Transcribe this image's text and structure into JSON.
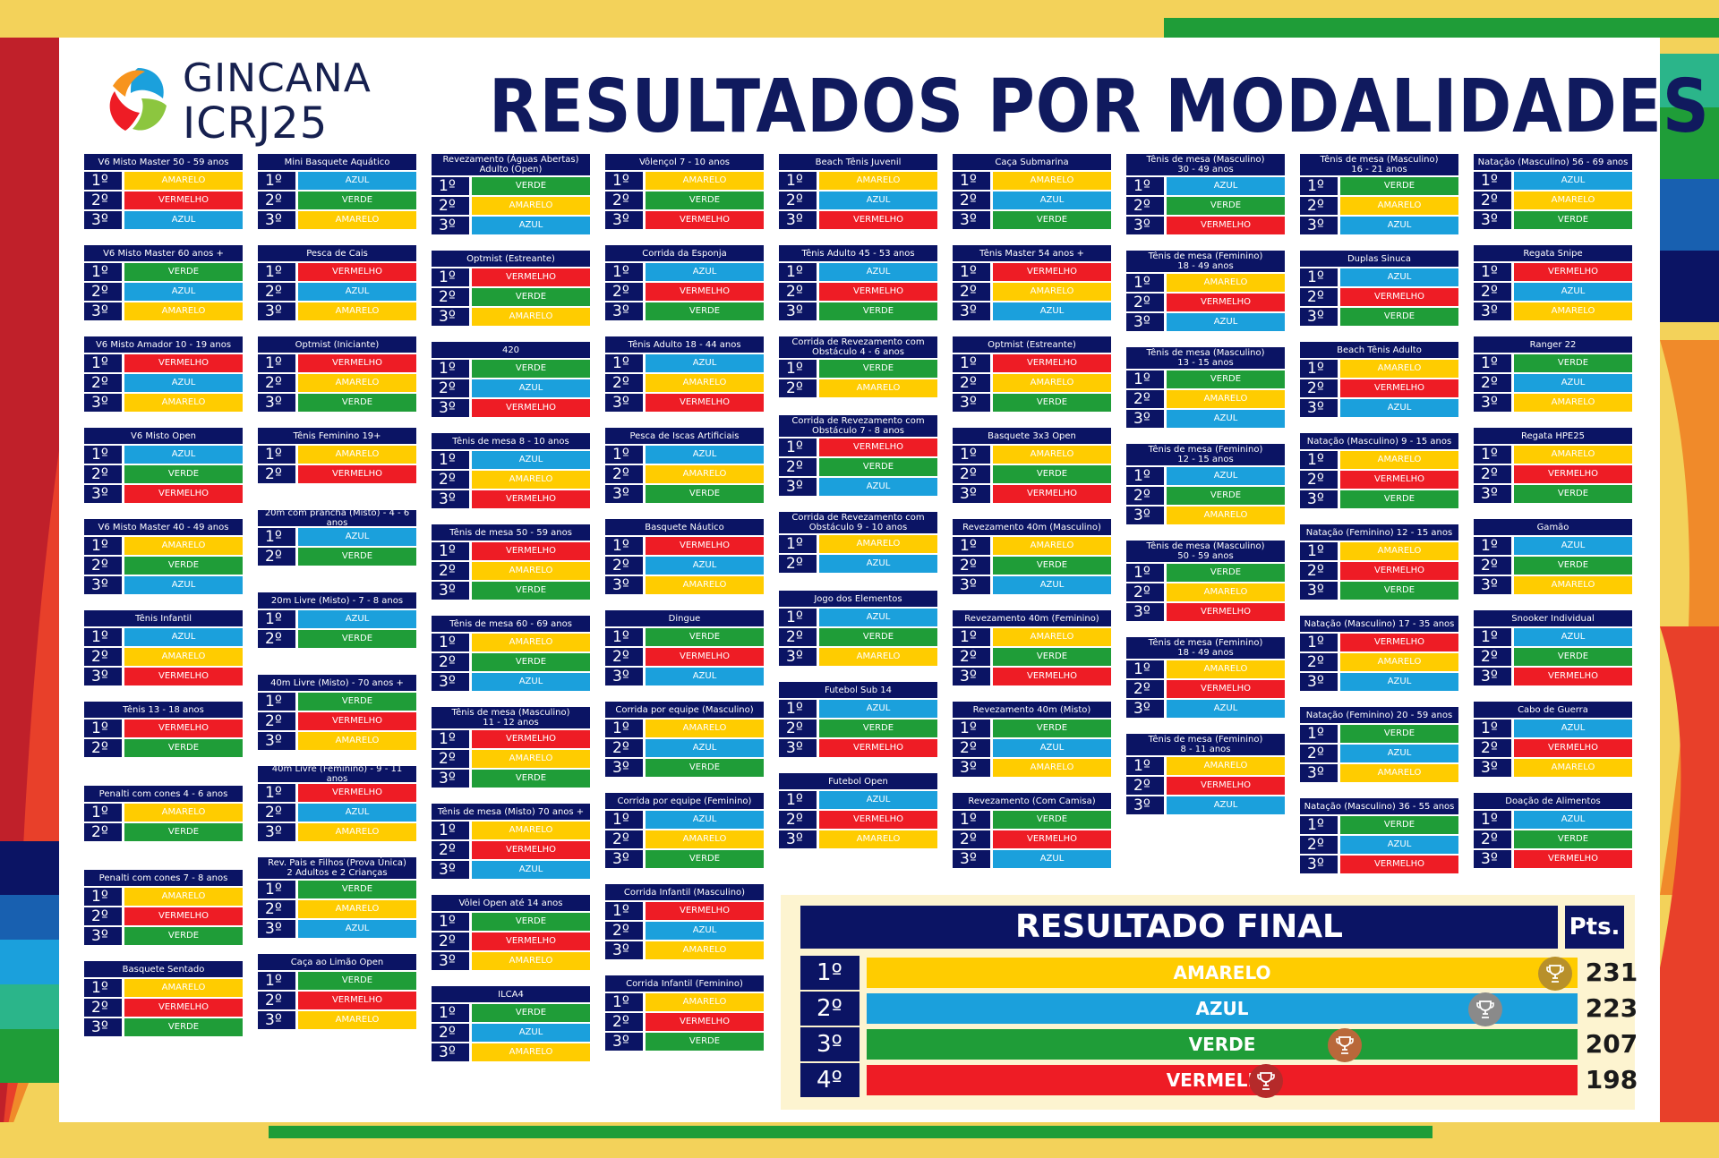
{
  "logo": {
    "line1": "GINCANA",
    "line2": "ICRJ25"
  },
  "title": "RESULTADOS POR MODALIDADES",
  "colors": {
    "AMARELO": "#ffcc00",
    "AZUL": "#1ba0dc",
    "VERDE": "#1f9d38",
    "VERMELHO": "#ee1c25",
    "navy": "#0b1464"
  },
  "columns": [
    [
      {
        "title": "V6 Misto Master 50 - 59 anos",
        "results": [
          "AMARELO",
          "VERMELHO",
          "AZUL"
        ]
      },
      {
        "title": "V6 Misto Master 60 anos +",
        "results": [
          "VERDE",
          "AZUL",
          "AMARELO"
        ]
      },
      {
        "title": "V6 Misto Amador 10 - 19 anos",
        "results": [
          "VERMELHO",
          "AZUL",
          "AMARELO"
        ]
      },
      {
        "title": "V6 Misto Open",
        "results": [
          "AZUL",
          "VERDE",
          "VERMELHO"
        ]
      },
      {
        "title": "V6 Misto Master 40 - 49 anos",
        "results": [
          "AMARELO",
          "VERDE",
          "AZUL"
        ]
      },
      {
        "title": "Tênis Infantil",
        "results": [
          "AZUL",
          "AMARELO",
          "VERMELHO"
        ]
      },
      {
        "title": "Tênis 13 - 18 anos",
        "results": [
          "VERMELHO",
          "VERDE"
        ]
      },
      {
        "title": "Penalti com cones 4 - 6 anos",
        "results": [
          "AMARELO",
          "VERDE"
        ]
      },
      {
        "title": "Penalti com cones 7 - 8 anos",
        "results": [
          "AMARELO",
          "VERMELHO",
          "VERDE"
        ]
      },
      {
        "title": "Basquete Sentado",
        "results": [
          "AMARELO",
          "VERMELHO",
          "VERDE"
        ]
      }
    ],
    [
      {
        "title": "Mini Basquete Aquático",
        "results": [
          "AZUL",
          "VERDE",
          "AMARELO"
        ]
      },
      {
        "title": "Pesca de Cais",
        "results": [
          "VERMELHO",
          "AZUL",
          "AMARELO"
        ]
      },
      {
        "title": "Optmist (Iniciante)",
        "results": [
          "VERMELHO",
          "AMARELO",
          "VERDE"
        ]
      },
      {
        "title": "Tênis Feminino 19+",
        "results": [
          "AMARELO",
          "VERMELHO"
        ]
      },
      {
        "title": "20m com prancha (Misto) - 4 - 6 anos",
        "results": [
          "AZUL",
          "VERDE"
        ]
      },
      {
        "title": "20m Livre (Misto) - 7 - 8 anos",
        "results": [
          "AZUL",
          "VERDE"
        ]
      },
      {
        "title": "40m Livre (Misto) - 70 anos +",
        "results": [
          "VERDE",
          "VERMELHO",
          "AMARELO"
        ]
      },
      {
        "title": "40m Livre (Feminino) - 9 - 11 anos",
        "results": [
          "VERMELHO",
          "AZUL",
          "AMARELO"
        ]
      },
      {
        "title": "Rev. Pais e Filhos (Prova Única)\n2 Adultos e 2 Crianças",
        "results": [
          "VERDE",
          "AMARELO",
          "AZUL"
        ]
      },
      {
        "title": "Caça ao Limão Open",
        "results": [
          "VERDE",
          "VERMELHO",
          "AMARELO"
        ]
      }
    ],
    [
      {
        "title": "Revezamento (Águas Abertas)\nAdulto (Open)",
        "results": [
          "VERDE",
          "AMARELO",
          "AZUL"
        ]
      },
      {
        "title": "Optmist (Estreante)",
        "results": [
          "VERMELHO",
          "VERDE",
          "AMARELO"
        ]
      },
      {
        "title": "420",
        "results": [
          "VERDE",
          "AZUL",
          "VERMELHO"
        ]
      },
      {
        "title": "Tênis de mesa 8 - 10 anos",
        "results": [
          "AZUL",
          "AMARELO",
          "VERMELHO"
        ]
      },
      {
        "title": "Tênis de mesa 50 - 59 anos",
        "results": [
          "VERMELHO",
          "AMARELO",
          "VERDE"
        ]
      },
      {
        "title": "Tênis de mesa 60 - 69 anos",
        "results": [
          "AMARELO",
          "VERDE",
          "AZUL"
        ]
      },
      {
        "title": "Tênis de mesa (Masculino)\n11 - 12 anos",
        "results": [
          "VERMELHO",
          "AMARELO",
          "VERDE"
        ]
      },
      {
        "title": "Tênis de mesa (Misto) 70 anos +",
        "results": [
          "AMARELO",
          "VERMELHO",
          "AZUL"
        ]
      },
      {
        "title": "Vôlei Open até 14 anos",
        "results": [
          "VERDE",
          "VERMELHO",
          "AMARELO"
        ]
      },
      {
        "title": "ILCA4",
        "results": [
          "VERDE",
          "AZUL",
          "AMARELO"
        ]
      }
    ],
    [
      {
        "title": "Vôlençol 7 - 10 anos",
        "results": [
          "AMARELO",
          "VERDE",
          "VERMELHO"
        ]
      },
      {
        "title": "Corrida da Esponja",
        "results": [
          "AZUL",
          "VERMELHO",
          "VERDE"
        ]
      },
      {
        "title": "Tênis Adulto 18 - 44 anos",
        "results": [
          "AZUL",
          "AMARELO",
          "VERMELHO"
        ]
      },
      {
        "title": "Pesca de Iscas Artificiais",
        "results": [
          "AZUL",
          "AMARELO",
          "VERDE"
        ]
      },
      {
        "title": "Basquete Náutico",
        "results": [
          "VERMELHO",
          "AZUL",
          "AMARELO"
        ]
      },
      {
        "title": "Dingue",
        "results": [
          "VERDE",
          "VERMELHO",
          "AZUL"
        ]
      },
      {
        "title": "Corrida por equipe (Masculino)",
        "results": [
          "AMARELO",
          "AZUL",
          "VERDE"
        ]
      },
      {
        "title": "Corrida por equipe (Feminino)",
        "results": [
          "AZUL",
          "AMARELO",
          "VERDE"
        ]
      },
      {
        "title": "Corrida Infantil (Masculino)",
        "results": [
          "VERMELHO",
          "AZUL",
          "AMARELO"
        ]
      },
      {
        "title": "Corrida Infantil (Feminino)",
        "results": [
          "AMARELO",
          "VERMELHO",
          "VERDE"
        ]
      }
    ],
    [
      {
        "title": "Beach Tênis Juvenil",
        "results": [
          "AMARELO",
          "AZUL",
          "VERMELHO"
        ]
      },
      {
        "title": "Tênis Adulto 45 - 53 anos",
        "results": [
          "AZUL",
          "VERMELHO",
          "VERDE"
        ]
      },
      {
        "title": "Corrida de Revezamento com\nObstáculo 4 - 6 anos",
        "results": [
          "VERDE",
          "AMARELO"
        ]
      },
      {
        "title": "Corrida de Revezamento com\nObstáculo 7 - 8 anos",
        "results": [
          "VERMELHO",
          "VERDE",
          "AZUL"
        ]
      },
      {
        "title": "Corrida de Revezamento com\nObstáculo 9 - 10 anos",
        "results": [
          "AMARELO",
          "AZUL"
        ]
      },
      {
        "title": "Jogo dos Elementos",
        "results": [
          "AZUL",
          "VERDE",
          "AMARELO"
        ]
      },
      {
        "title": "Futebol Sub 14",
        "results": [
          "AZUL",
          "VERDE",
          "VERMELHO"
        ]
      },
      {
        "title": "Futebol Open",
        "results": [
          "AZUL",
          "VERMELHO",
          "AMARELO"
        ]
      }
    ],
    [
      {
        "title": "Caça Submarina",
        "results": [
          "AMARELO",
          "AZUL",
          "VERDE"
        ]
      },
      {
        "title": "Tênis Master 54 anos +",
        "results": [
          "VERMELHO",
          "AMARELO",
          "AZUL"
        ]
      },
      {
        "title": "Optmist (Estreante)",
        "results": [
          "VERMELHO",
          "AMARELO",
          "VERDE"
        ]
      },
      {
        "title": "Basquete 3x3 Open",
        "results": [
          "AMARELO",
          "VERDE",
          "VERMELHO"
        ]
      },
      {
        "title": "Revezamento 40m (Masculino)",
        "results": [
          "AMARELO",
          "VERDE",
          "AZUL"
        ]
      },
      {
        "title": "Revezamento 40m (Feminino)",
        "results": [
          "AMARELO",
          "VERDE",
          "VERMELHO"
        ]
      },
      {
        "title": "Revezamento 40m (Misto)",
        "results": [
          "VERDE",
          "AZUL",
          "AMARELO"
        ]
      },
      {
        "title": "Revezamento (Com Camisa)",
        "results": [
          "VERDE",
          "VERMELHO",
          "AZUL"
        ]
      }
    ],
    [
      {
        "title": "Tênis de mesa (Masculino)\n30 - 49 anos",
        "results": [
          "AZUL",
          "VERDE",
          "VERMELHO"
        ]
      },
      {
        "title": "Tênis de mesa (Feminino)\n18 - 49 anos",
        "results": [
          "AMARELO",
          "VERMELHO",
          "AZUL"
        ]
      },
      {
        "title": "Tênis de mesa (Masculino)\n13 - 15 anos",
        "results": [
          "VERDE",
          "AMARELO",
          "AZUL"
        ]
      },
      {
        "title": "Tênis de mesa (Feminino)\n12 - 15 anos",
        "results": [
          "AZUL",
          "VERDE",
          "AMARELO"
        ]
      },
      {
        "title": "Tênis de mesa (Masculino)\n50 - 59 anos",
        "results": [
          "VERDE",
          "AMARELO",
          "VERMELHO"
        ]
      },
      {
        "title": "Tênis de mesa (Feminino)\n18 - 49 anos",
        "results": [
          "AMARELO",
          "VERMELHO",
          "AZUL"
        ]
      },
      {
        "title": "Tênis de mesa (Feminino)\n8 - 11 anos",
        "results": [
          "AMARELO",
          "VERMELHO",
          "AZUL"
        ]
      }
    ],
    [
      {
        "title": "Tênis de mesa (Masculino)\n16 - 21 anos",
        "results": [
          "VERDE",
          "AMARELO",
          "AZUL"
        ]
      },
      {
        "title": "Duplas Sinuca",
        "results": [
          "AZUL",
          "VERMELHO",
          "VERDE"
        ]
      },
      {
        "title": "Beach Tênis Adulto",
        "results": [
          "AMARELO",
          "VERMELHO",
          "AZUL"
        ]
      },
      {
        "title": "Natação (Masculino) 9 - 15 anos",
        "results": [
          "AMARELO",
          "VERMELHO",
          "VERDE"
        ]
      },
      {
        "title": "Natação (Feminino) 12 - 15 anos",
        "results": [
          "AMARELO",
          "VERMELHO",
          "VERDE"
        ]
      },
      {
        "title": "Natação (Masculino) 17 - 35 anos",
        "results": [
          "VERMELHO",
          "AMARELO",
          "AZUL"
        ]
      },
      {
        "title": "Natação (Feminino) 20 - 59 anos",
        "results": [
          "VERDE",
          "AZUL",
          "AMARELO"
        ]
      },
      {
        "title": "Natação (Masculino) 36 - 55 anos",
        "results": [
          "VERDE",
          "AZUL",
          "VERMELHO"
        ]
      }
    ],
    [
      {
        "title": "Natação (Masculino) 56 - 69 anos",
        "results": [
          "AZUL",
          "AMARELO",
          "VERDE"
        ]
      },
      {
        "title": "Regata Snipe",
        "results": [
          "VERMELHO",
          "AZUL",
          "AMARELO"
        ]
      },
      {
        "title": "Ranger 22",
        "results": [
          "VERDE",
          "AZUL",
          "AMARELO"
        ]
      },
      {
        "title": "Regata HPE25",
        "results": [
          "AMARELO",
          "VERMELHO",
          "VERDE"
        ]
      },
      {
        "title": "Gamão",
        "results": [
          "AZUL",
          "VERDE",
          "AMARELO"
        ]
      },
      {
        "title": "Snooker Individual",
        "results": [
          "AZUL",
          "VERDE",
          "VERMELHO"
        ]
      },
      {
        "title": "Cabo de Guerra",
        "results": [
          "AZUL",
          "VERMELHO",
          "AMARELO"
        ]
      },
      {
        "title": "Doação de Alimentos",
        "results": [
          "AZUL",
          "VERDE",
          "VERMELHO"
        ]
      }
    ]
  ],
  "positions": [
    "1º",
    "2º",
    "3º",
    "4º"
  ],
  "final": {
    "title": "RESULTADO FINAL",
    "pts_label": "Pts.",
    "rows": [
      {
        "pos": "1º",
        "team": "AMARELO",
        "pts": "231",
        "trophy": "gold-trophy-icon",
        "trophy_color": "#b8902a",
        "points": 231
      },
      {
        "pos": "2º",
        "team": "AZUL",
        "pts": "223",
        "trophy": "silver-trophy-icon",
        "trophy_color": "#8a8a8a",
        "points": 223
      },
      {
        "pos": "3º",
        "team": "VERDE",
        "pts": "207",
        "trophy": "bronze-trophy-icon",
        "trophy_color": "#b9683a",
        "points": 207
      },
      {
        "pos": "4º",
        "team": "VERMELHO",
        "pts": "198",
        "trophy": "red-trophy-icon",
        "trophy_color": "#b52a2a",
        "points": 198
      }
    ]
  }
}
